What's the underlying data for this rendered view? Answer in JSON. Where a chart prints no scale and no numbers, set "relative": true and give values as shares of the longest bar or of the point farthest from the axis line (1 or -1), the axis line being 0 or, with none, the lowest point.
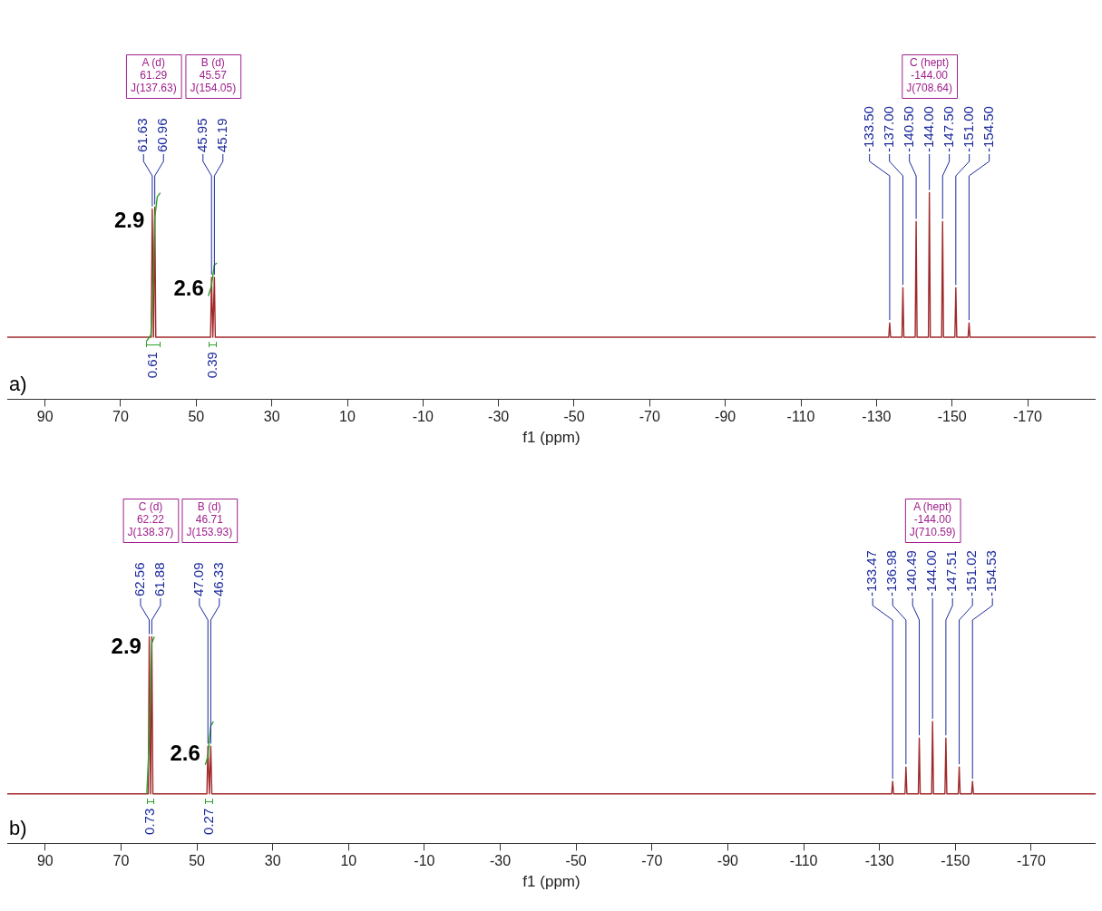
{
  "chart_data": [
    {
      "type": "line",
      "xlabel": "f1 (ppm)",
      "relative": true,
      "xlim": [
        100,
        -188
      ],
      "xticks": [
        90,
        70,
        50,
        30,
        10,
        -10,
        -30,
        -50,
        -70,
        -90,
        -110,
        -130,
        -150,
        -170
      ],
      "series": [
        {
          "color": "#a0282a",
          "x": [
            100,
            61.9,
            61.63,
            61.3,
            60.96,
            60.7,
            46.2,
            45.95,
            45.6,
            45.19,
            44.95,
            -133.25,
            -133.5,
            -133.75,
            -136.75,
            -137,
            -137.25,
            -140.25,
            -140.5,
            -140.75,
            -143.75,
            -144,
            -144.25,
            -147.25,
            -147.5,
            -147.75,
            -150.75,
            -151,
            -151.25,
            -154.25,
            -154.5,
            -154.75,
            -188
          ],
          "values": [
            0.3,
            0.3,
            0.92,
            0.3,
            0.93,
            0.3,
            0.3,
            0.59,
            0.3,
            0.59,
            0.3,
            0.3,
            0.37,
            0.3,
            0.3,
            0.54,
            0.3,
            0.3,
            0.86,
            0.3,
            0.3,
            1,
            0.3,
            0.3,
            0.86,
            0.3,
            0.3,
            0.54,
            0.3,
            0.3,
            0.37,
            0.3,
            0.3
          ]
        },
        {
          "color": "#2ca02c",
          "x": [
            63.2,
            62,
            61.63,
            61.29,
            60.96,
            60.3,
            59.5
          ],
          "values": [
            0.28,
            0.31,
            0.45,
            0.6,
            0.88,
            0.98,
            1
          ]
        },
        {
          "color": "#2ca02c",
          "x": [
            46.8,
            45.95,
            45.57,
            45.19,
            44.5
          ],
          "values": [
            0.5,
            0.55,
            0.6,
            0.65,
            0.66
          ]
        }
      ],
      "annotations": [
        "a)",
        "A (d)\n61.29\nJ(137.63)",
        "B (d)\n45.57\nJ(154.05)",
        "C (hept)\n-144.00\nJ(708.64)",
        {
          "text": "61.63",
          "x": 61.63,
          "y": 0.92
        },
        {
          "text": "60.96",
          "x": 60.96,
          "y": 0.93
        },
        {
          "text": "45.95",
          "x": 45.95,
          "y": 0.59
        },
        {
          "text": "45.19",
          "x": 45.19,
          "y": 0.59
        },
        {
          "text": "-133.50",
          "x": -133.5,
          "y": 0.37
        },
        {
          "text": "-137.00",
          "x": -137,
          "y": 0.54
        },
        {
          "text": "-140.50",
          "x": -140.5,
          "y": 0.86
        },
        {
          "text": "-144.00",
          "x": -144,
          "y": 1
        },
        {
          "text": "-147.50",
          "x": -147.5,
          "y": 0.86
        },
        {
          "text": "-151.00",
          "x": -151,
          "y": 0.54
        },
        {
          "text": "-154.50",
          "x": -154.5,
          "y": 0.37
        },
        {
          "text": "0.61",
          "x": 61.29,
          "y": 0.3
        },
        {
          "text": "0.39",
          "x": 45.57,
          "y": 0.3
        },
        {
          "text": "2.9",
          "x": 61.29,
          "y": 0.86
        },
        {
          "text": "2.6",
          "x": 45.57,
          "y": 0.53
        }
      ]
    },
    {
      "type": "line",
      "xlabel": "f1 (ppm)",
      "relative": true,
      "xlim": [
        100,
        -187
      ],
      "xticks": [
        90,
        70,
        50,
        30,
        10,
        -10,
        -30,
        -50,
        -70,
        -90,
        -110,
        -130,
        -150,
        -170
      ],
      "series": [
        {
          "color": "#a0282a",
          "x": [
            100,
            62.8,
            62.56,
            62.2,
            61.88,
            61.6,
            47.35,
            47.09,
            46.7,
            46.33,
            46.05,
            -133.22,
            -133.47,
            -133.72,
            -136.73,
            -136.98,
            -137.23,
            -140.24,
            -140.49,
            -140.74,
            -143.75,
            -144,
            -144.25,
            -147.26,
            -147.51,
            -147.76,
            -150.77,
            -151.02,
            -151.27,
            -154.28,
            -154.53,
            -154.78,
            -187
          ],
          "values": [
            0.24,
            0.24,
            1,
            0.24,
            1,
            0.24,
            0.24,
            0.47,
            0.24,
            0.47,
            0.24,
            0.24,
            0.3,
            0.24,
            0.24,
            0.37,
            0.24,
            0.24,
            0.51,
            0.24,
            0.24,
            0.59,
            0.24,
            0.24,
            0.51,
            0.24,
            0.24,
            0.37,
            0.24,
            0.24,
            0.3,
            0.24,
            0.24
          ]
        },
        {
          "color": "#2ca02c",
          "x": [
            63.2,
            62.56,
            62.22,
            61.88,
            61.2
          ],
          "values": [
            0.24,
            0.5,
            0.75,
            0.97,
            1
          ]
        },
        {
          "color": "#2ca02c",
          "x": [
            47.8,
            47.09,
            46.71,
            46.33,
            45.6
          ],
          "values": [
            0.38,
            0.42,
            0.5,
            0.57,
            0.59
          ]
        }
      ],
      "annotations": [
        "b)",
        "C (d)\n62.22\nJ(138.37)",
        "B (d)\n46.71\nJ(153.93)",
        "A (hept)\n-144.00\nJ(710.59)",
        {
          "text": "62.56",
          "x": 62.56,
          "y": 1
        },
        {
          "text": "61.88",
          "x": 61.88,
          "y": 1
        },
        {
          "text": "47.09",
          "x": 47.09,
          "y": 0.47
        },
        {
          "text": "46.33",
          "x": 46.33,
          "y": 0.47
        },
        {
          "text": "-133.47",
          "x": -133.47,
          "y": 0.3
        },
        {
          "text": "-136.98",
          "x": -136.98,
          "y": 0.37
        },
        {
          "text": "-140.49",
          "x": -140.49,
          "y": 0.51
        },
        {
          "text": "-144.00",
          "x": -144,
          "y": 0.59
        },
        {
          "text": "-147.51",
          "x": -147.51,
          "y": 0.51
        },
        {
          "text": "-151.02",
          "x": -151.02,
          "y": 0.37
        },
        {
          "text": "-154.53",
          "x": -154.53,
          "y": 0.3
        },
        {
          "text": "0.73",
          "x": 62.22,
          "y": 0.24
        },
        {
          "text": "0.27",
          "x": 46.71,
          "y": 0.24
        },
        {
          "text": "2.9",
          "x": 62.22,
          "y": 0.95
        },
        {
          "text": "2.6",
          "x": 46.71,
          "y": 0.43
        }
      ]
    }
  ]
}
